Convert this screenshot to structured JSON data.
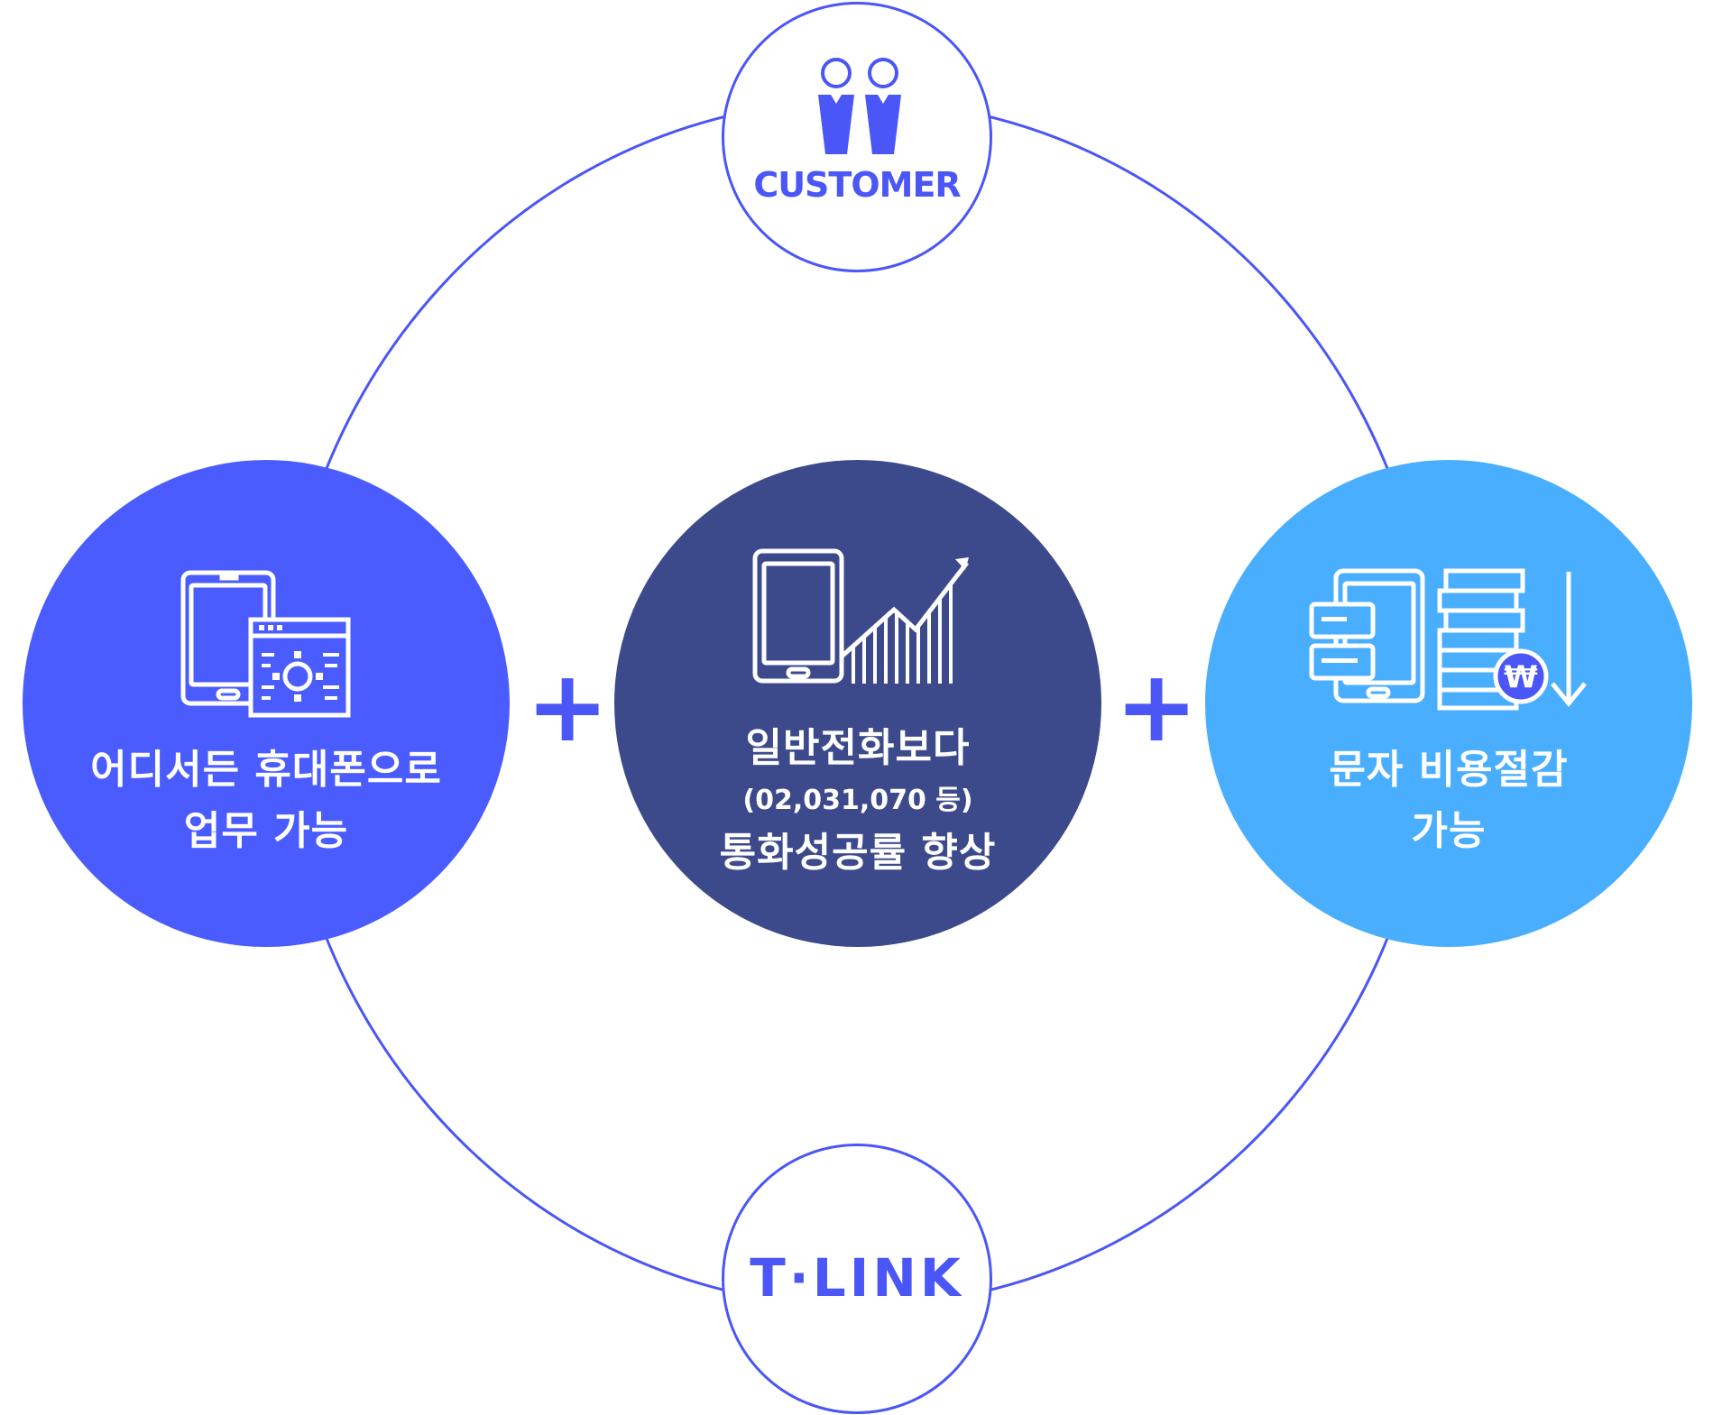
{
  "colors": {
    "accent": "#4a56f5",
    "left_node": "#4b5cff",
    "center_node": "#3c4a8c",
    "right_node": "#4aaeff",
    "text_on_node": "#ffffff"
  },
  "top_node": {
    "label": "CUSTOMER",
    "icon": "two-people-icon"
  },
  "bottom_node": {
    "label": "T·LINK",
    "icon": "tlink-logo"
  },
  "left_node": {
    "icon": "tablet-settings-icon",
    "line1": "어디서든 휴대폰으로",
    "line2": "업무 가능"
  },
  "center_node": {
    "icon": "tablet-growth-chart-icon",
    "line1": "일반전화보다",
    "sub": "(02,031,070 등)",
    "line2": "통화성공률 향상"
  },
  "right_node": {
    "icon": "sms-cost-down-icon",
    "line1": "문자 비용절감",
    "line2": "가능"
  },
  "connectors": {
    "left_plus": "+",
    "right_plus": "+"
  }
}
